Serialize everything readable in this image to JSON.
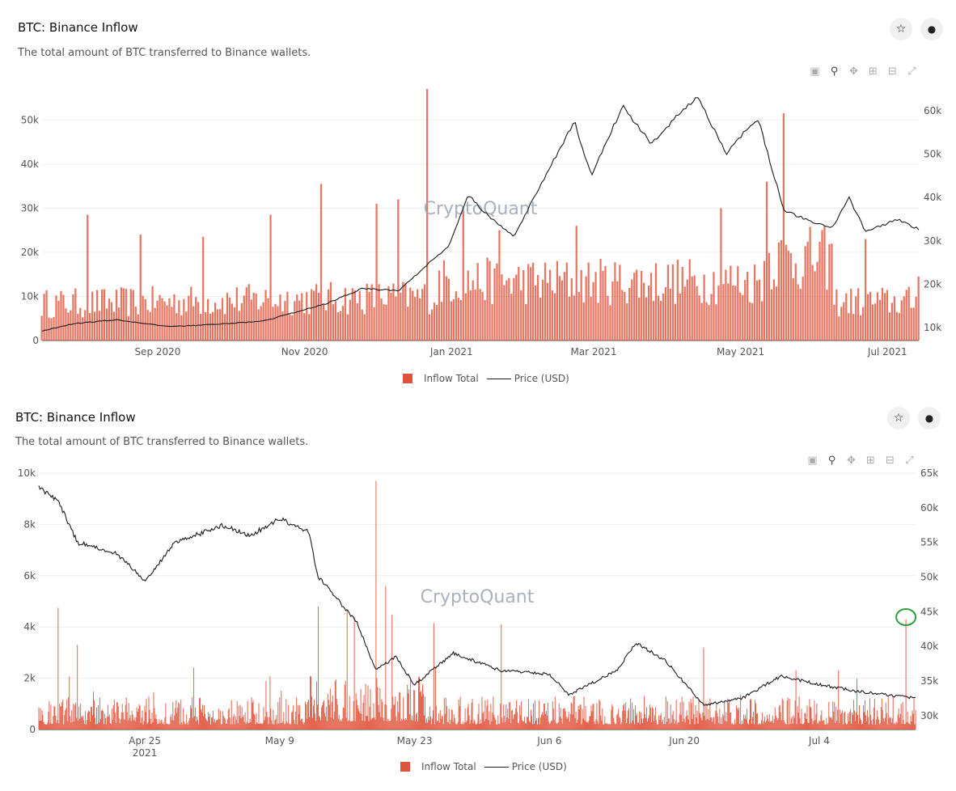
{
  "panel1": {
    "title": "BTC: Binance Inflow",
    "subtitle": "The total amount of BTC transferred to Binance wallets.",
    "star_label": "☆",
    "bell_label": "🔔",
    "watermark": "CryptoQuant",
    "legend": {
      "bar": "Inflow Total",
      "line": "Price (USD)"
    }
  },
  "panel2": {
    "title": "BTC: Binance Inflow",
    "subtitle": "The total amount of BTC transferred to Binance wallets.",
    "star_label": "☆",
    "bell_label": "🔔",
    "watermark": "CryptoQuant",
    "legend": {
      "bar": "Inflow Total",
      "line": "Price (USD)"
    }
  },
  "toolbar_icons": [
    "camera-icon",
    "zoom-icon",
    "pan-icon",
    "zoom-in-icon",
    "zoom-out-icon",
    "autoscale-icon"
  ],
  "colors": {
    "bar": "#e0533b",
    "line": "#1a1a1a",
    "highlight": "#2e9e3a"
  },
  "chart_data": [
    {
      "type": "bar",
      "granularity": "daily",
      "x_range": [
        "2020-07-15",
        "2021-07-14"
      ],
      "x_ticks": [
        "Sep 2020",
        "Nov 2020",
        "Jan 2021",
        "Mar 2021",
        "May 2021",
        "Jul 2021"
      ],
      "y_left": {
        "ticks": [
          "0",
          "10k",
          "20k",
          "30k",
          "40k",
          "50k"
        ],
        "range": [
          0,
          55000
        ]
      },
      "y_right": {
        "ticks": [
          "10k",
          "20k",
          "30k",
          "40k",
          "50k",
          "60k"
        ],
        "range": [
          7000,
          63000
        ]
      },
      "inflow_spikes": [
        {
          "date": "2020-08-03",
          "value": 28500
        },
        {
          "date": "2020-08-25",
          "value": 24000
        },
        {
          "date": "2020-09-20",
          "value": 23500
        },
        {
          "date": "2020-10-18",
          "value": 28500
        },
        {
          "date": "2020-11-08",
          "value": 35500
        },
        {
          "date": "2020-12-01",
          "value": 31000
        },
        {
          "date": "2020-12-10",
          "value": 32000
        },
        {
          "date": "2020-12-22",
          "value": 57000
        },
        {
          "date": "2021-01-06",
          "value": 29500
        },
        {
          "date": "2021-01-21",
          "value": 25000
        },
        {
          "date": "2021-02-22",
          "value": 26000
        },
        {
          "date": "2021-04-23",
          "value": 30000
        },
        {
          "date": "2021-05-12",
          "value": 36000
        },
        {
          "date": "2021-05-19",
          "value": 51500
        },
        {
          "date": "2021-06-22",
          "value": 23000
        },
        {
          "date": "2021-07-14",
          "value": 14500
        }
      ],
      "price": [
        [
          "2020-07-15",
          9200
        ],
        [
          "2020-07-28",
          10900
        ],
        [
          "2020-08-15",
          11800
        ],
        [
          "2020-09-05",
          10200
        ],
        [
          "2020-09-25",
          10700
        ],
        [
          "2020-10-15",
          11500
        ],
        [
          "2020-10-28",
          13500
        ],
        [
          "2020-11-10",
          15500
        ],
        [
          "2020-11-25",
          19000
        ],
        [
          "2020-12-10",
          18500
        ],
        [
          "2020-12-20",
          23500
        ],
        [
          "2020-12-31",
          29000
        ],
        [
          "2021-01-08",
          40500
        ],
        [
          "2021-01-15",
          36500
        ],
        [
          "2021-01-27",
          31000
        ],
        [
          "2021-02-08",
          44000
        ],
        [
          "2021-02-21",
          57500
        ],
        [
          "2021-02-28",
          45000
        ],
        [
          "2021-03-13",
          61000
        ],
        [
          "2021-03-25",
          52500
        ],
        [
          "2021-04-13",
          63500
        ],
        [
          "2021-04-25",
          50000
        ],
        [
          "2021-05-08",
          58500
        ],
        [
          "2021-05-19",
          37000
        ],
        [
          "2021-05-28",
          35000
        ],
        [
          "2021-06-08",
          33000
        ],
        [
          "2021-06-15",
          40000
        ],
        [
          "2021-06-22",
          32000
        ],
        [
          "2021-07-05",
          35000
        ],
        [
          "2021-07-14",
          32700
        ]
      ]
    },
    {
      "type": "bar",
      "granularity": "hourly",
      "x_range": [
        "2021-04-14",
        "2021-07-14"
      ],
      "x_ticks": [
        "Apr 25\n2021",
        "May 9",
        "May 23",
        "Jun 6",
        "Jun 20",
        "Jul 4"
      ],
      "y_left": {
        "ticks": [
          "0",
          "2k",
          "4k",
          "6k",
          "8k",
          "10k"
        ],
        "range": [
          0,
          10000
        ]
      },
      "y_right": {
        "ticks": [
          "30k",
          "35k",
          "40k",
          "45k",
          "50k",
          "55k",
          "60k",
          "65k"
        ],
        "range": [
          28000,
          65000
        ]
      },
      "inflow_spikes": [
        {
          "date": "2021-04-16",
          "value": 4750
        },
        {
          "date": "2021-04-18",
          "value": 3300
        },
        {
          "date": "2021-05-13",
          "value": 4800
        },
        {
          "date": "2021-05-16",
          "value": 4650
        },
        {
          "date": "2021-05-19",
          "value": 9700
        },
        {
          "date": "2021-05-20",
          "value": 5600
        },
        {
          "date": "2021-05-25",
          "value": 4150
        },
        {
          "date": "2021-06-01",
          "value": 4100
        },
        {
          "date": "2021-06-22",
          "value": 3200
        },
        {
          "date": "2021-07-13",
          "value": 4300
        }
      ],
      "highlight_date": "2021-07-13",
      "price": [
        [
          "2021-04-14",
          63000
        ],
        [
          "2021-04-16",
          61000
        ],
        [
          "2021-04-18",
          55000
        ],
        [
          "2021-04-22",
          53500
        ],
        [
          "2021-04-25",
          49500
        ],
        [
          "2021-04-28",
          54800
        ],
        [
          "2021-05-03",
          57500
        ],
        [
          "2021-05-06",
          56000
        ],
        [
          "2021-05-09",
          58500
        ],
        [
          "2021-05-12",
          56500
        ],
        [
          "2021-05-13",
          50000
        ],
        [
          "2021-05-17",
          43500
        ],
        [
          "2021-05-19",
          36500
        ],
        [
          "2021-05-21",
          38500
        ],
        [
          "2021-05-23",
          34500
        ],
        [
          "2021-05-27",
          39000
        ],
        [
          "2021-06-01",
          36500
        ],
        [
          "2021-06-06",
          36000
        ],
        [
          "2021-06-08",
          33000
        ],
        [
          "2021-06-13",
          36500
        ],
        [
          "2021-06-15",
          40500
        ],
        [
          "2021-06-18",
          38000
        ],
        [
          "2021-06-22",
          31500
        ],
        [
          "2021-06-26",
          32500
        ],
        [
          "2021-06-30",
          35700
        ],
        [
          "2021-07-04",
          34500
        ],
        [
          "2021-07-08",
          33500
        ],
        [
          "2021-07-14",
          32500
        ]
      ]
    }
  ]
}
